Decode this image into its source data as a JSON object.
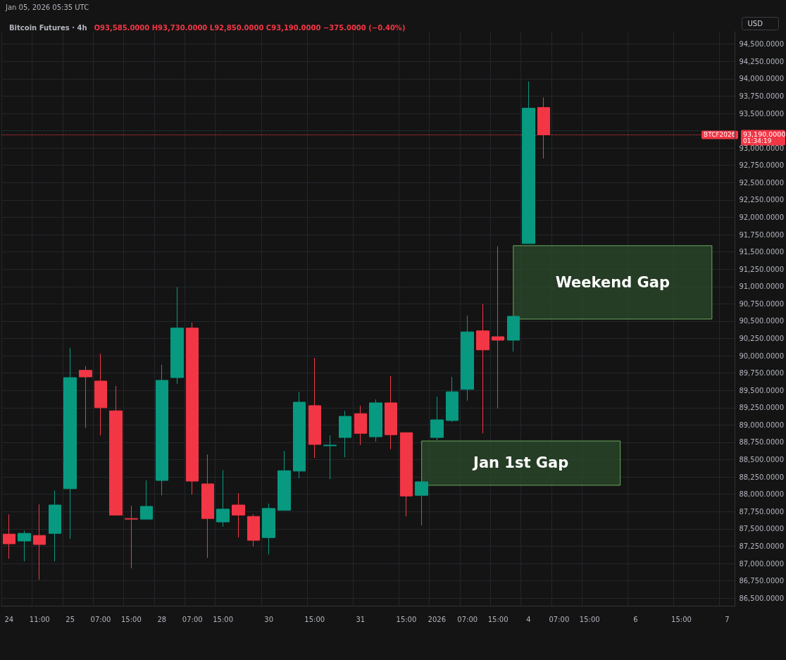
{
  "chart_data": {
    "type": "candlestick",
    "title": "Bitcoin Futures · 4h",
    "subtitle": "O93,585.0000 H93,730.0000 L92,850.0000 C93,190.0000 −375.0000 (−0.40%)",
    "ylabel": "USD",
    "annotations": [
      "Jan 05, 2026 05:35 UTC",
      "93,190.0000",
      "01:34:19"
    ],
    "categories": [
      "24",
      null,
      "11:00",
      null,
      "25",
      null,
      "07:00",
      null,
      "15:00",
      null,
      "28",
      null,
      "07:00",
      null,
      "15:00",
      null,
      null,
      "30",
      null,
      null,
      "15:00",
      null,
      null,
      "31",
      null,
      null,
      "15:00",
      null,
      "2026",
      null,
      "07:00",
      null,
      "15:00",
      null,
      "4",
      null,
      "07:00",
      null,
      "15:00",
      null,
      null,
      "6",
      null,
      null,
      "15:00",
      null,
      null,
      "7"
    ],
    "ohlc": [
      [
        87425,
        87710,
        87070,
        87285
      ],
      [
        87325,
        87475,
        87030,
        87435
      ],
      [
        87405,
        87855,
        86765,
        87275
      ],
      [
        87435,
        88055,
        87030,
        87845
      ],
      [
        88080,
        90115,
        87355,
        89685
      ],
      [
        89790,
        89850,
        88955,
        89695
      ],
      [
        89635,
        90030,
        88850,
        89250
      ],
      [
        89205,
        89565,
        87700,
        87700
      ],
      [
        87650,
        87835,
        86930,
        87640
      ],
      [
        87640,
        88200,
        87640,
        87825
      ],
      [
        88200,
        89870,
        87985,
        89645
      ],
      [
        89685,
        90990,
        89595,
        90400
      ],
      [
        90400,
        90480,
        87995,
        88190
      ],
      [
        88150,
        88575,
        87080,
        87650
      ],
      [
        87600,
        88350,
        87530,
        87785
      ],
      [
        87845,
        88015,
        87375,
        87700
      ],
      [
        87680,
        87710,
        87245,
        87335
      ],
      [
        87375,
        87865,
        87130,
        87795
      ],
      [
        87770,
        88625,
        87770,
        88340
      ],
      [
        88335,
        89480,
        88230,
        89330
      ],
      [
        89280,
        89970,
        88525,
        88720
      ],
      [
        88700,
        88850,
        88220,
        88710
      ],
      [
        88820,
        89205,
        88535,
        89125
      ],
      [
        89165,
        89280,
        88710,
        88880
      ],
      [
        88830,
        89370,
        88760,
        89320
      ],
      [
        89320,
        89705,
        88650,
        88860
      ],
      [
        88890,
        88890,
        87680,
        87975
      ],
      [
        87985,
        88180,
        87550,
        88180
      ],
      [
        88820,
        89410,
        88780,
        89075
      ],
      [
        89065,
        89695,
        89045,
        89480
      ],
      [
        89515,
        90580,
        89350,
        90345
      ],
      [
        90360,
        90745,
        88880,
        90085
      ],
      [
        90275,
        91580,
        89240,
        90225
      ],
      [
        90225,
        90570,
        90060,
        90570
      ],
      [
        91620,
        93960,
        91620,
        93575
      ],
      [
        93585,
        93730,
        92850,
        93190
      ],
      null,
      null,
      null,
      null,
      null,
      null,
      null,
      null,
      null,
      null,
      null,
      null
    ],
    "colors": [
      "#f23645",
      "#089981",
      "#f23645",
      "#089981",
      "#089981",
      "#f23645",
      "#f23645",
      "#f23645",
      "#f23645",
      "#089981",
      "#089981",
      "#089981",
      "#f23645",
      "#f23645",
      "#089981",
      "#f23645",
      "#f23645",
      "#089981",
      "#089981",
      "#089981",
      "#f23645",
      "#089981",
      "#089981",
      "#f23645",
      "#089981",
      "#f23645",
      "#f23645",
      "#089981",
      "#089981",
      "#089981",
      "#089981",
      "#f23645",
      "#f23645",
      "#089981",
      "#089981",
      "#f23645",
      null,
      null,
      null,
      null,
      null,
      null,
      null,
      null,
      null,
      null,
      null,
      null
    ],
    "ylim": [
      86390,
      94680
    ],
    "yticks": [
      {
        "value": 86500,
        "label": "86,500.0000"
      },
      {
        "value": 86750,
        "label": "86,750.0000"
      },
      {
        "value": 87000,
        "label": "87,000.0000"
      },
      {
        "value": 87250,
        "label": "87,250.0000"
      },
      {
        "value": 87500,
        "label": "87,500.0000"
      },
      {
        "value": 87750,
        "label": "87,750.0000"
      },
      {
        "value": 88000,
        "label": "88,000.0000"
      },
      {
        "value": 88250,
        "label": "88,250.0000"
      },
      {
        "value": 88500,
        "label": "88,500.0000"
      },
      {
        "value": 88750,
        "label": "88,750.0000"
      },
      {
        "value": 89000,
        "label": "89,000.0000"
      },
      {
        "value": 89250,
        "label": "89,250.0000"
      },
      {
        "value": 89500,
        "label": "89,500.0000"
      },
      {
        "value": 89750,
        "label": "89,750.0000"
      },
      {
        "value": 90000,
        "label": "90,000.0000"
      },
      {
        "value": 90250,
        "label": "90,250.0000"
      },
      {
        "value": 90500,
        "label": "90,500.0000"
      },
      {
        "value": 90750,
        "label": "90,750.0000"
      },
      {
        "value": 91000,
        "label": "91,000.0000"
      },
      {
        "value": 91250,
        "label": "91,250.0000"
      },
      {
        "value": 91500,
        "label": "91,500.0000"
      },
      {
        "value": 91750,
        "label": "91,750.0000"
      },
      {
        "value": 92000,
        "label": "92,000.0000"
      },
      {
        "value": 92250,
        "label": "92,250.0000"
      },
      {
        "value": 92500,
        "label": "92,500.0000"
      },
      {
        "value": 92750,
        "label": "92,750.0000"
      },
      {
        "value": 93000,
        "label": "93,000.0000"
      },
      {
        "value": 93250,
        "label": null
      },
      {
        "value": 93500,
        "label": "93,500.0000"
      },
      {
        "value": 93750,
        "label": "93,750.0000"
      },
      {
        "value": 94000,
        "label": "94,000.0000"
      },
      {
        "value": 94250,
        "label": "94,250.0000"
      },
      {
        "value": 94500,
        "label": "94,500.0000"
      }
    ],
    "grid": true,
    "ref_lines": [
      {
        "axis": "y",
        "value": 93190,
        "label": "BTCF2026",
        "color": "#f23645",
        "line_style": "dotted"
      }
    ],
    "bands": [
      {
        "axis": "y",
        "from": 88130,
        "to": 88770,
        "label": "Jan 1st Gap",
        "color": "#2b4a2b"
      },
      {
        "axis": "y",
        "from": 90530,
        "to": 91590,
        "label": "Weekend Gap",
        "color": "#2b4a2b"
      }
    ]
  }
}
